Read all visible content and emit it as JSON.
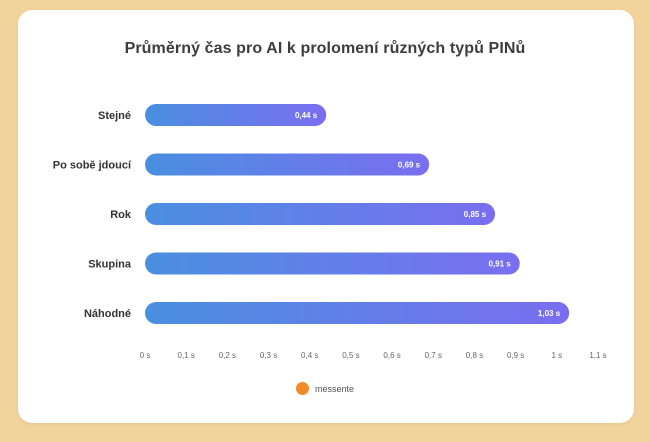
{
  "chart_data": {
    "type": "bar",
    "orientation": "horizontal",
    "title": "Průměrný čas pro AI k prolomení různých typů PINů",
    "categories": [
      "Stejné",
      "Po sobě jdoucí",
      "Rok",
      "Skupina",
      "Náhodné"
    ],
    "series": [
      {
        "name": "messente",
        "values": [
          0.44,
          0.69,
          0.85,
          0.91,
          1.03
        ]
      }
    ],
    "value_labels": [
      "0,44 s",
      "0,69 s",
      "0,85 s",
      "0,91 s",
      "1,03 s"
    ],
    "xlim": [
      0,
      1.1
    ],
    "x_ticks": [
      0,
      0.1,
      0.2,
      0.3,
      0.4,
      0.5,
      0.6,
      0.7,
      0.8,
      0.9,
      1,
      1.1
    ],
    "x_tick_labels": [
      "0 s",
      "0,1 s",
      "0,2 s",
      "0,3 s",
      "0,4 s",
      "0,5 s",
      "0,6 s",
      "0,7 s",
      "0,8 s",
      "0,9 s",
      "1 s",
      "1,1 s"
    ],
    "grid": false,
    "legend_position": "bottom-center",
    "colors": {
      "bar_gradient_start": "#4a8fe0",
      "bar_gradient_end": "#7a6ef0",
      "legend_marker": "#f58a2c"
    }
  }
}
